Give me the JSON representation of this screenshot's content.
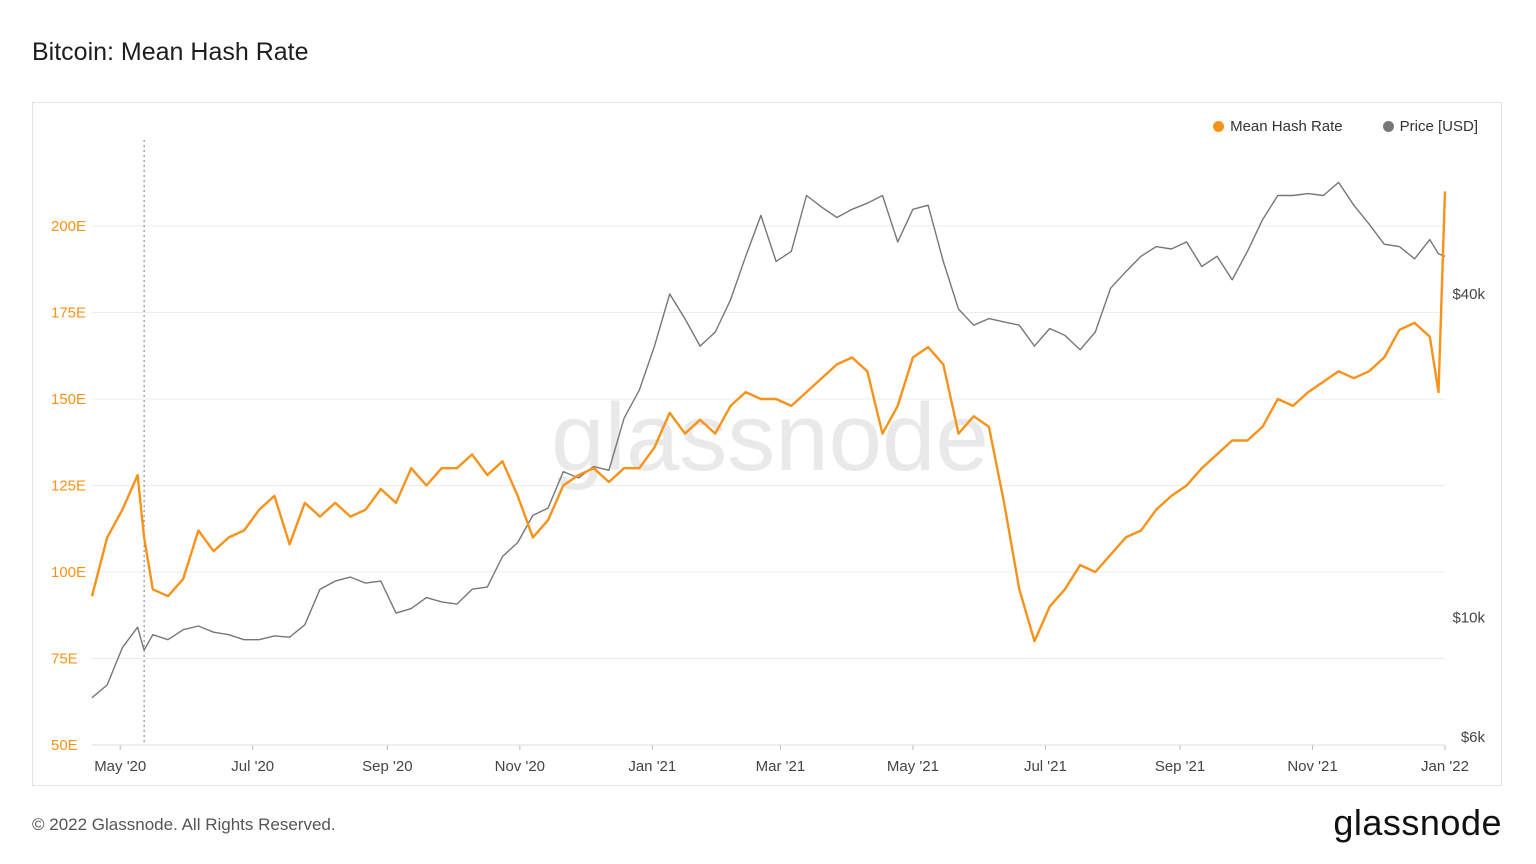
{
  "title": "Bitcoin: Mean Hash Rate",
  "footer": "© 2022 Glassnode. All Rights Reserved.",
  "brand": "glassnode",
  "watermark": "glassnode",
  "legend": [
    {
      "label": "Mean Hash Rate",
      "color": "#f7931a"
    },
    {
      "label": "Price [USD]",
      "color": "#777777"
    }
  ],
  "chart_data": {
    "type": "line",
    "x_range": [
      "2020-04-18",
      "2022-01-01"
    ],
    "x_ticks": [
      "May '20",
      "Jul '20",
      "Sep '20",
      "Nov '20",
      "Jan '21",
      "Mar '21",
      "May '21",
      "Jul '21",
      "Sep '21",
      "Nov '21",
      "Jan '22"
    ],
    "y_left": {
      "label": "",
      "ticks": [
        "50E",
        "75E",
        "100E",
        "125E",
        "150E",
        "175E",
        "200E"
      ],
      "range": [
        50,
        200
      ]
    },
    "y_right": {
      "label": "",
      "scale": "log",
      "ticks": [
        "$6k",
        "$10k",
        "$40k"
      ]
    },
    "legend_position": "top-right",
    "grid": true,
    "series": [
      {
        "name": "Mean Hash Rate",
        "color": "#f7931a",
        "axis": "left",
        "points": [
          [
            "2020-04-18",
            93
          ],
          [
            "2020-04-25",
            110
          ],
          [
            "2020-05-02",
            118
          ],
          [
            "2020-05-09",
            128
          ],
          [
            "2020-05-12",
            110
          ],
          [
            "2020-05-16",
            95
          ],
          [
            "2020-05-23",
            93
          ],
          [
            "2020-05-30",
            98
          ],
          [
            "2020-06-06",
            112
          ],
          [
            "2020-06-13",
            106
          ],
          [
            "2020-06-20",
            110
          ],
          [
            "2020-06-27",
            112
          ],
          [
            "2020-07-04",
            118
          ],
          [
            "2020-07-11",
            122
          ],
          [
            "2020-07-18",
            108
          ],
          [
            "2020-07-25",
            120
          ],
          [
            "2020-08-01",
            116
          ],
          [
            "2020-08-08",
            120
          ],
          [
            "2020-08-15",
            116
          ],
          [
            "2020-08-22",
            118
          ],
          [
            "2020-08-29",
            124
          ],
          [
            "2020-09-05",
            120
          ],
          [
            "2020-09-12",
            130
          ],
          [
            "2020-09-19",
            125
          ],
          [
            "2020-09-26",
            130
          ],
          [
            "2020-10-03",
            130
          ],
          [
            "2020-10-10",
            134
          ],
          [
            "2020-10-17",
            128
          ],
          [
            "2020-10-24",
            132
          ],
          [
            "2020-10-31",
            122
          ],
          [
            "2020-11-07",
            110
          ],
          [
            "2020-11-14",
            115
          ],
          [
            "2020-11-21",
            125
          ],
          [
            "2020-11-28",
            128
          ],
          [
            "2020-12-05",
            130
          ],
          [
            "2020-12-12",
            126
          ],
          [
            "2020-12-19",
            130
          ],
          [
            "2020-12-26",
            130
          ],
          [
            "2021-01-02",
            136
          ],
          [
            "2021-01-09",
            146
          ],
          [
            "2021-01-16",
            140
          ],
          [
            "2021-01-23",
            144
          ],
          [
            "2021-01-30",
            140
          ],
          [
            "2021-02-06",
            148
          ],
          [
            "2021-02-13",
            152
          ],
          [
            "2021-02-20",
            150
          ],
          [
            "2021-02-27",
            150
          ],
          [
            "2021-03-06",
            148
          ],
          [
            "2021-03-13",
            152
          ],
          [
            "2021-03-20",
            156
          ],
          [
            "2021-03-27",
            160
          ],
          [
            "2021-04-03",
            162
          ],
          [
            "2021-04-10",
            158
          ],
          [
            "2021-04-17",
            140
          ],
          [
            "2021-04-24",
            148
          ],
          [
            "2021-05-01",
            162
          ],
          [
            "2021-05-08",
            165
          ],
          [
            "2021-05-15",
            160
          ],
          [
            "2021-05-22",
            140
          ],
          [
            "2021-05-29",
            145
          ],
          [
            "2021-06-05",
            142
          ],
          [
            "2021-06-12",
            120
          ],
          [
            "2021-06-19",
            95
          ],
          [
            "2021-06-26",
            80
          ],
          [
            "2021-07-03",
            90
          ],
          [
            "2021-07-10",
            95
          ],
          [
            "2021-07-17",
            102
          ],
          [
            "2021-07-24",
            100
          ],
          [
            "2021-07-31",
            105
          ],
          [
            "2021-08-07",
            110
          ],
          [
            "2021-08-14",
            112
          ],
          [
            "2021-08-21",
            118
          ],
          [
            "2021-08-28",
            122
          ],
          [
            "2021-09-04",
            125
          ],
          [
            "2021-09-11",
            130
          ],
          [
            "2021-09-18",
            134
          ],
          [
            "2021-09-25",
            138
          ],
          [
            "2021-10-02",
            138
          ],
          [
            "2021-10-09",
            142
          ],
          [
            "2021-10-16",
            150
          ],
          [
            "2021-10-23",
            148
          ],
          [
            "2021-10-30",
            152
          ],
          [
            "2021-11-06",
            155
          ],
          [
            "2021-11-13",
            158
          ],
          [
            "2021-11-20",
            156
          ],
          [
            "2021-11-27",
            158
          ],
          [
            "2021-12-04",
            162
          ],
          [
            "2021-12-11",
            170
          ],
          [
            "2021-12-18",
            172
          ],
          [
            "2021-12-25",
            168
          ],
          [
            "2021-12-29",
            152
          ],
          [
            "2022-01-01",
            210
          ]
        ]
      },
      {
        "name": "Price [USD]",
        "color": "#777777",
        "axis": "right",
        "points": [
          [
            "2020-04-18",
            7100
          ],
          [
            "2020-04-25",
            7500
          ],
          [
            "2020-05-02",
            8800
          ],
          [
            "2020-05-09",
            9600
          ],
          [
            "2020-05-12",
            8700
          ],
          [
            "2020-05-16",
            9300
          ],
          [
            "2020-05-23",
            9100
          ],
          [
            "2020-05-30",
            9500
          ],
          [
            "2020-06-06",
            9650
          ],
          [
            "2020-06-13",
            9400
          ],
          [
            "2020-06-20",
            9300
          ],
          [
            "2020-06-27",
            9100
          ],
          [
            "2020-07-04",
            9100
          ],
          [
            "2020-07-11",
            9250
          ],
          [
            "2020-07-18",
            9200
          ],
          [
            "2020-07-25",
            9700
          ],
          [
            "2020-08-01",
            11300
          ],
          [
            "2020-08-08",
            11700
          ],
          [
            "2020-08-15",
            11900
          ],
          [
            "2020-08-22",
            11600
          ],
          [
            "2020-08-29",
            11700
          ],
          [
            "2020-09-05",
            10200
          ],
          [
            "2020-09-12",
            10400
          ],
          [
            "2020-09-19",
            10900
          ],
          [
            "2020-09-26",
            10700
          ],
          [
            "2020-10-03",
            10600
          ],
          [
            "2020-10-10",
            11300
          ],
          [
            "2020-10-17",
            11400
          ],
          [
            "2020-10-24",
            13000
          ],
          [
            "2020-10-31",
            13800
          ],
          [
            "2020-11-07",
            15500
          ],
          [
            "2020-11-14",
            16000
          ],
          [
            "2020-11-21",
            18700
          ],
          [
            "2020-11-28",
            18200
          ],
          [
            "2020-12-05",
            19100
          ],
          [
            "2020-12-12",
            18800
          ],
          [
            "2020-12-19",
            23500
          ],
          [
            "2020-12-26",
            26500
          ],
          [
            "2021-01-02",
            32000
          ],
          [
            "2021-01-09",
            40000
          ],
          [
            "2021-01-16",
            36000
          ],
          [
            "2021-01-23",
            32000
          ],
          [
            "2021-01-30",
            34000
          ],
          [
            "2021-02-06",
            39000
          ],
          [
            "2021-02-13",
            47000
          ],
          [
            "2021-02-20",
            56000
          ],
          [
            "2021-02-27",
            46000
          ],
          [
            "2021-03-06",
            48000
          ],
          [
            "2021-03-13",
            61000
          ],
          [
            "2021-03-20",
            58000
          ],
          [
            "2021-03-27",
            55500
          ],
          [
            "2021-04-03",
            57500
          ],
          [
            "2021-04-10",
            59000
          ],
          [
            "2021-04-17",
            61000
          ],
          [
            "2021-04-24",
            50000
          ],
          [
            "2021-05-01",
            57500
          ],
          [
            "2021-05-08",
            58500
          ],
          [
            "2021-05-15",
            46000
          ],
          [
            "2021-05-22",
            37500
          ],
          [
            "2021-05-29",
            35000
          ],
          [
            "2021-06-05",
            36000
          ],
          [
            "2021-06-12",
            35500
          ],
          [
            "2021-06-19",
            35000
          ],
          [
            "2021-06-26",
            32000
          ],
          [
            "2021-07-03",
            34500
          ],
          [
            "2021-07-10",
            33500
          ],
          [
            "2021-07-17",
            31500
          ],
          [
            "2021-07-24",
            34000
          ],
          [
            "2021-07-31",
            41000
          ],
          [
            "2021-08-07",
            44000
          ],
          [
            "2021-08-14",
            47000
          ],
          [
            "2021-08-21",
            49000
          ],
          [
            "2021-08-28",
            48500
          ],
          [
            "2021-09-04",
            50000
          ],
          [
            "2021-09-11",
            45000
          ],
          [
            "2021-09-18",
            47000
          ],
          [
            "2021-09-25",
            42500
          ],
          [
            "2021-10-02",
            48000
          ],
          [
            "2021-10-09",
            55000
          ],
          [
            "2021-10-16",
            61000
          ],
          [
            "2021-10-23",
            61000
          ],
          [
            "2021-10-30",
            61500
          ],
          [
            "2021-11-06",
            61000
          ],
          [
            "2021-11-13",
            64500
          ],
          [
            "2021-11-20",
            58500
          ],
          [
            "2021-11-27",
            54000
          ],
          [
            "2021-12-04",
            49500
          ],
          [
            "2021-12-11",
            49000
          ],
          [
            "2021-12-18",
            46500
          ],
          [
            "2021-12-25",
            50500
          ],
          [
            "2021-12-29",
            47500
          ],
          [
            "2022-01-01",
            47000
          ]
        ]
      }
    ],
    "annotations": [
      {
        "type": "vertical-dotted-line",
        "x": "2020-05-12"
      }
    ]
  }
}
